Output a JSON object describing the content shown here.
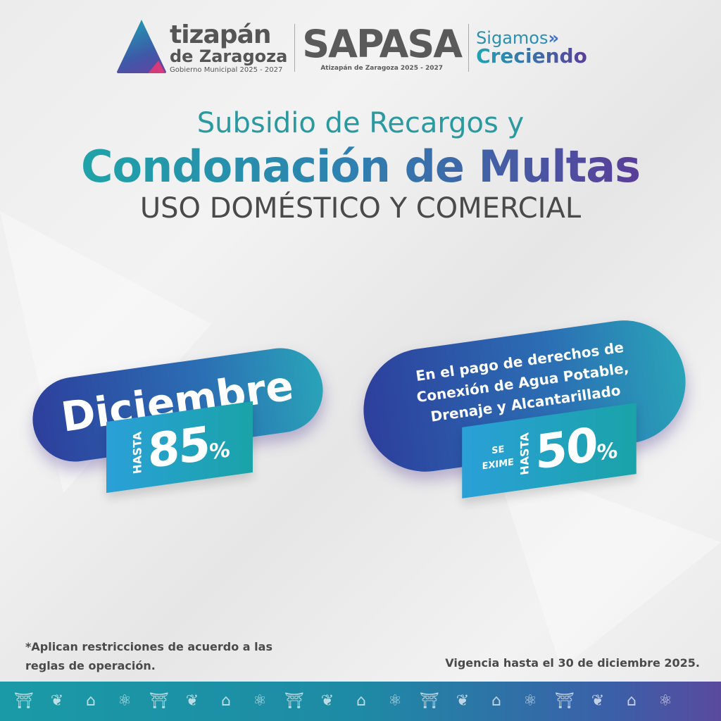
{
  "logos": {
    "municipio": {
      "line1": "tizapán",
      "line2": "de Zaragoza",
      "line3": "Gobierno Municipal  2025 - 2027"
    },
    "sapasa": {
      "name": "SAPASA",
      "subtitle": "Atizapán de Zaragoza  2025 - 2027"
    },
    "slogan": {
      "line1": "Sigamos",
      "arrows": "»",
      "line2": "Creciendo"
    }
  },
  "headline": {
    "line1": "Subsidio de Recargos y",
    "line2": "Condonación de Multas",
    "line3": "USO DOMÉSTICO Y COMERCIAL"
  },
  "offer_left": {
    "month": "Diciembre",
    "hasta": "HASTA",
    "percent": "85",
    "sign": "%"
  },
  "offer_right": {
    "text_lines": [
      "En el pago de derechos de",
      "Conexión de Agua Potable,",
      "Drenaje y Alcantarillado"
    ],
    "se": "SE",
    "exime": "EXIME",
    "hasta": "HASTA",
    "percent": "50",
    "sign": "%"
  },
  "footnote": {
    "line1": "*Aplican restricciones de acuerdo a las",
    "line2": "reglas de operación."
  },
  "validity": "Vigencia hasta el 30 de diciembre 2025.",
  "footer_icons": [
    "market-icon",
    "cow-plant-icon",
    "factory-icon",
    "science-icon",
    "market-icon",
    "cow-plant-icon",
    "factory-icon",
    "science-icon",
    "market-icon",
    "cow-plant-icon",
    "factory-icon",
    "science-icon",
    "market-icon",
    "cow-plant-icon",
    "factory-icon",
    "science-icon",
    "market-icon",
    "cow-plant-icon",
    "factory-icon",
    "science-icon"
  ],
  "colors": {
    "teal": "#2a9aa0",
    "blue": "#2d3f9c",
    "purple": "#5a3d9a",
    "gray": "#4a4a4a"
  }
}
